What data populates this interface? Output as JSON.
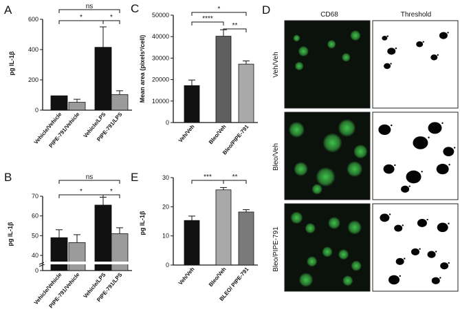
{
  "colors": {
    "black_bar": "#111111",
    "gray_bar": "#9b9b9b",
    "dark_gray_bar": "#5f5f5f",
    "light_gray_bar": "#a9a9a9",
    "mid_gray_bar": "#7a7a7a",
    "micrograph_bg": "#0b120b",
    "cell_green": "#3fc24a"
  },
  "chart_data": [
    {
      "panel": "A",
      "type": "bar",
      "ylabel": "pg IL-1β",
      "ylim": [
        0,
        600
      ],
      "yticks": [
        0,
        200,
        400,
        600
      ],
      "categories": [
        "Vehicle/Vehicle",
        "PIPE-791/Vehicle",
        "Vehicle/LPS",
        "PIPE-791/LPS"
      ],
      "values": [
        95,
        52,
        415,
        103
      ],
      "errors": [
        0,
        20,
        135,
        25
      ],
      "bar_colors": [
        "#111111",
        "#9b9b9b",
        "#111111",
        "#9b9b9b"
      ],
      "significance": [
        {
          "from": 0,
          "to": 3,
          "label": "ns"
        },
        {
          "from": 0,
          "to": 2,
          "label": "*"
        },
        {
          "from": 2,
          "to": 3,
          "label": "*"
        }
      ]
    },
    {
      "panel": "B",
      "type": "bar",
      "ylabel": "pg IL-1β",
      "ylim": [
        0,
        70
      ],
      "axis_break": true,
      "yticks": [
        0,
        40,
        50,
        60,
        70
      ],
      "categories": [
        "Vehicle/Vehicle",
        "PIPE-791/Vehicle",
        "Vehicle/LPS",
        "PIPE-791/LPS"
      ],
      "values": [
        49,
        46.5,
        65.5,
        51
      ],
      "errors": [
        4,
        4,
        4,
        3
      ],
      "bar_colors": [
        "#111111",
        "#9b9b9b",
        "#111111",
        "#9b9b9b"
      ],
      "significance": [
        {
          "from": 0,
          "to": 3,
          "label": "ns"
        },
        {
          "from": 0,
          "to": 2,
          "label": "*"
        },
        {
          "from": 2,
          "to": 3,
          "label": "*"
        }
      ]
    },
    {
      "panel": "C",
      "type": "bar",
      "ylabel": "Mean area (pixels²/cell)",
      "ylim": [
        0,
        50000
      ],
      "yticks": [
        0,
        10000,
        20000,
        30000,
        40000,
        50000
      ],
      "categories": [
        "Veh/Veh",
        "Bleo/Veh",
        "Bleo/PIPE-791"
      ],
      "values": [
        17200,
        40200,
        27200
      ],
      "errors": [
        2600,
        3000,
        1500
      ],
      "bar_colors": [
        "#111111",
        "#5f5f5f",
        "#a9a9a9"
      ],
      "significance": [
        {
          "from": 0,
          "to": 2,
          "label": "*"
        },
        {
          "from": 0,
          "to": 1,
          "label": "****"
        },
        {
          "from": 1,
          "to": 2,
          "label": "**"
        }
      ]
    },
    {
      "panel": "E",
      "type": "bar",
      "ylabel": "pg IL-1β",
      "ylim": [
        0,
        30
      ],
      "yticks": [
        0,
        10,
        20,
        30
      ],
      "categories": [
        "Veh/Veh",
        "Bleo/Veh",
        "BLEO/ PIPE-791"
      ],
      "values": [
        15.3,
        25.8,
        18.2
      ],
      "errors": [
        1.5,
        0.8,
        0.8
      ],
      "bar_colors": [
        "#111111",
        "#a9a9a9",
        "#7a7a7a"
      ],
      "significance": [
        {
          "from": 0,
          "to": 1,
          "label": "***"
        },
        {
          "from": 1,
          "to": 2,
          "label": "**"
        }
      ]
    }
  ],
  "micrographs": {
    "panel": "D",
    "column_titles": [
      "CD68",
      "Threshold"
    ],
    "rows": [
      {
        "label": "Veh/Veh"
      },
      {
        "label": "Bleo/Veh"
      },
      {
        "label": "Bleo/PIPE-791"
      }
    ]
  }
}
